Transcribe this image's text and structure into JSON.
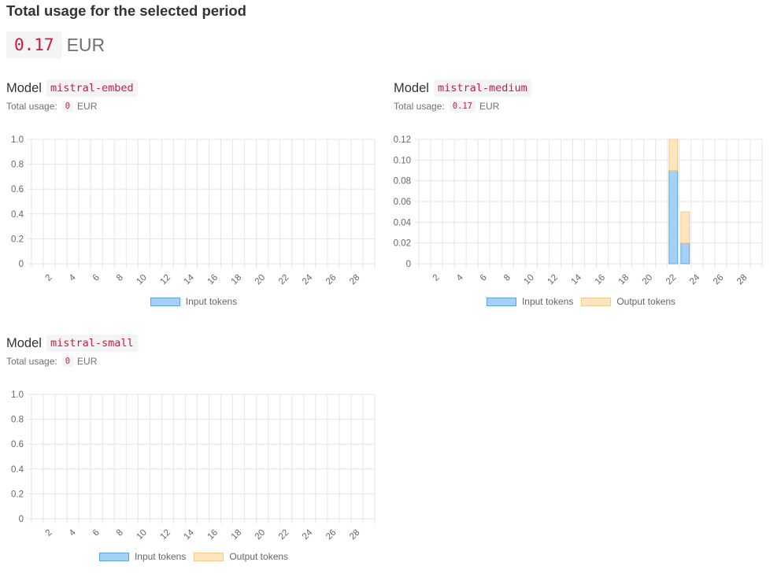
{
  "header": {
    "title": "Total usage for the selected period",
    "total_value": "0.17",
    "total_unit": "EUR"
  },
  "labels": {
    "model_word": "Model",
    "total_usage_label": "Total usage:",
    "currency": "EUR"
  },
  "colors": {
    "input_fill": "#a4d1f5",
    "input_border": "#5aa9da",
    "output_fill": "#fde5c0",
    "output_border": "#f7c98a",
    "grid": "#e6e6e6"
  },
  "chart_data": [
    {
      "type": "bar",
      "stacked": true,
      "model": "mistral-embed",
      "total_usage": "0",
      "x": [
        1,
        2,
        3,
        4,
        5,
        6,
        7,
        8,
        9,
        10,
        11,
        12,
        13,
        14,
        15,
        16,
        17,
        18,
        19,
        20,
        21,
        22,
        23,
        24,
        25,
        26,
        27,
        28,
        29
      ],
      "x_tick_labels": [
        "2",
        "4",
        "6",
        "8",
        "10",
        "12",
        "14",
        "16",
        "18",
        "20",
        "22",
        "24",
        "26",
        "28"
      ],
      "y_tick_labels": [
        "0",
        "0.2",
        "0.4",
        "0.6",
        "0.8",
        "1.0"
      ],
      "ylim": [
        0,
        1.0
      ],
      "grid": true,
      "legend_position": "bottom",
      "series": [
        {
          "name": "Input tokens",
          "values": [
            0,
            0,
            0,
            0,
            0,
            0,
            0,
            0,
            0,
            0,
            0,
            0,
            0,
            0,
            0,
            0,
            0,
            0,
            0,
            0,
            0,
            0,
            0,
            0,
            0,
            0,
            0,
            0,
            0
          ]
        }
      ]
    },
    {
      "type": "bar",
      "stacked": true,
      "model": "mistral-medium",
      "total_usage": "0.17",
      "x": [
        1,
        2,
        3,
        4,
        5,
        6,
        7,
        8,
        9,
        10,
        11,
        12,
        13,
        14,
        15,
        16,
        17,
        18,
        19,
        20,
        21,
        22,
        23,
        24,
        25,
        26,
        27,
        28,
        29
      ],
      "x_tick_labels": [
        "2",
        "4",
        "6",
        "8",
        "10",
        "12",
        "14",
        "16",
        "18",
        "20",
        "22",
        "24",
        "26",
        "28"
      ],
      "y_tick_labels": [
        "0",
        "0.02",
        "0.04",
        "0.06",
        "0.08",
        "0.10",
        "0.12"
      ],
      "ylim": [
        0,
        0.12
      ],
      "grid": true,
      "legend_position": "bottom",
      "series": [
        {
          "name": "Input tokens",
          "values": [
            0,
            0,
            0,
            0,
            0,
            0,
            0,
            0,
            0,
            0,
            0,
            0,
            0,
            0,
            0,
            0,
            0,
            0,
            0,
            0,
            0,
            0.09,
            0.02,
            0,
            0,
            0,
            0,
            0,
            0
          ]
        },
        {
          "name": "Output tokens",
          "values": [
            0,
            0,
            0,
            0,
            0,
            0,
            0,
            0,
            0,
            0,
            0,
            0,
            0,
            0,
            0,
            0,
            0,
            0,
            0,
            0,
            0,
            0.03,
            0.03,
            0,
            0,
            0,
            0,
            0,
            0
          ]
        }
      ]
    },
    {
      "type": "bar",
      "stacked": true,
      "model": "mistral-small",
      "total_usage": "0",
      "x": [
        1,
        2,
        3,
        4,
        5,
        6,
        7,
        8,
        9,
        10,
        11,
        12,
        13,
        14,
        15,
        16,
        17,
        18,
        19,
        20,
        21,
        22,
        23,
        24,
        25,
        26,
        27,
        28,
        29
      ],
      "x_tick_labels": [
        "2",
        "4",
        "6",
        "8",
        "10",
        "12",
        "14",
        "16",
        "18",
        "20",
        "22",
        "24",
        "26",
        "28"
      ],
      "y_tick_labels": [
        "0",
        "0.2",
        "0.4",
        "0.6",
        "0.8",
        "1.0"
      ],
      "ylim": [
        0,
        1.0
      ],
      "grid": true,
      "legend_position": "bottom",
      "series": [
        {
          "name": "Input tokens",
          "values": [
            0,
            0,
            0,
            0,
            0,
            0,
            0,
            0,
            0,
            0,
            0,
            0,
            0,
            0,
            0,
            0,
            0,
            0,
            0,
            0,
            0,
            0,
            0,
            0,
            0,
            0,
            0,
            0,
            0
          ]
        },
        {
          "name": "Output tokens",
          "values": [
            0,
            0,
            0,
            0,
            0,
            0,
            0,
            0,
            0,
            0,
            0,
            0,
            0,
            0,
            0,
            0,
            0,
            0,
            0,
            0,
            0,
            0,
            0,
            0,
            0,
            0,
            0,
            0,
            0
          ]
        }
      ]
    }
  ]
}
